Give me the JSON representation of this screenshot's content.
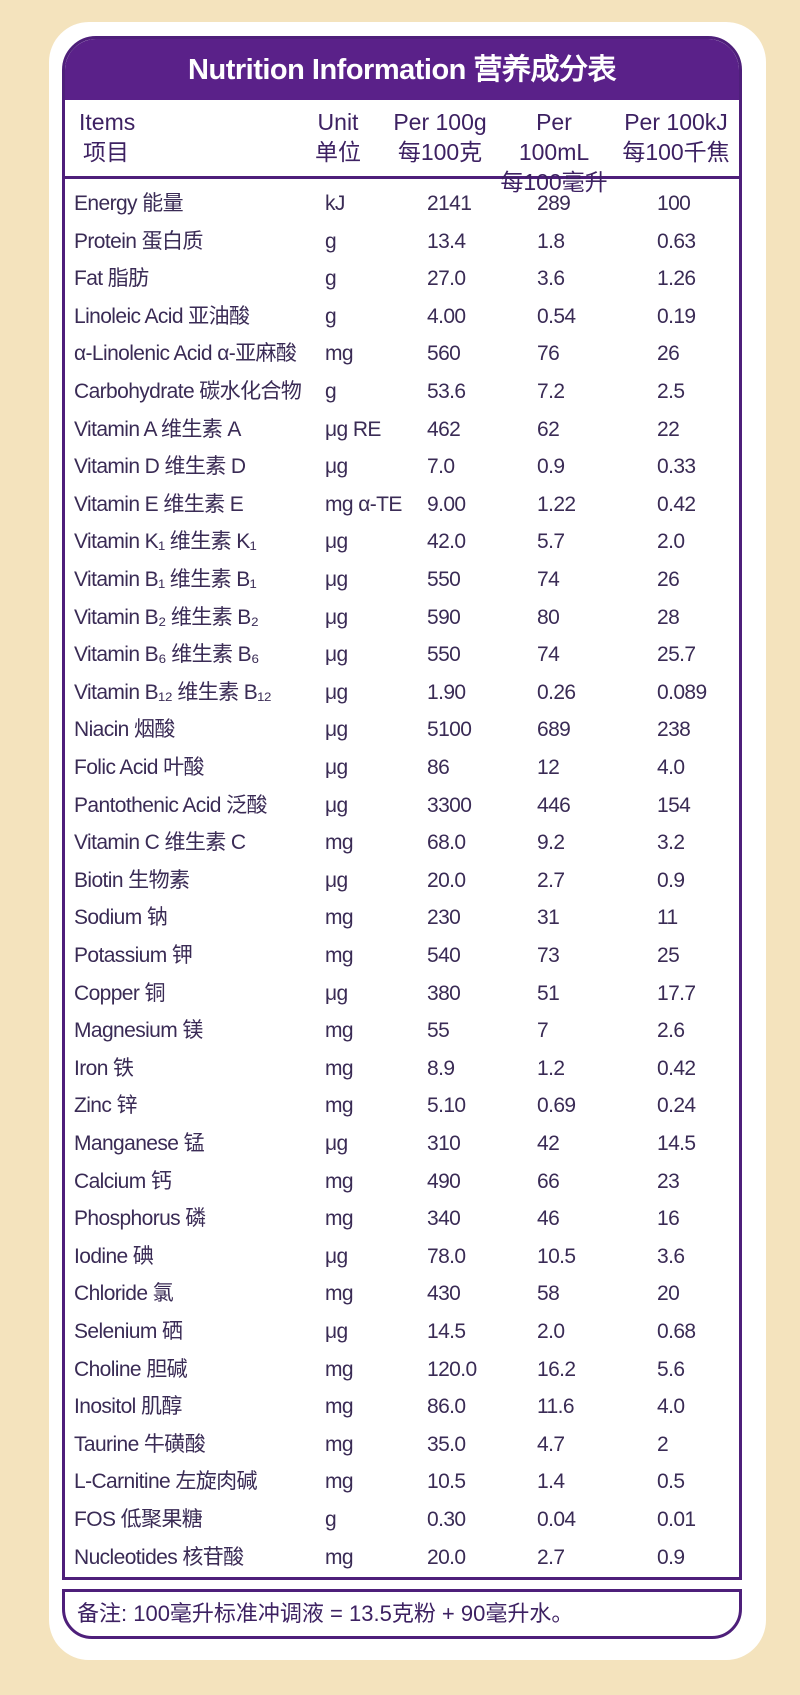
{
  "title": "Nutrition Information 营养成分表",
  "headers": {
    "items": {
      "en": "Items",
      "zh": "项目"
    },
    "unit": {
      "en": "Unit",
      "zh": "单位"
    },
    "per100g": {
      "en": "Per 100g",
      "zh": "每100克"
    },
    "per100ml": {
      "en": "Per 100mL",
      "zh": "每100毫升"
    },
    "per100kj": {
      "en": "Per 100kJ",
      "zh": "每100千焦"
    }
  },
  "rows": [
    [
      "Energy 能量",
      "kJ",
      "2141",
      "289",
      "100"
    ],
    [
      "Protein 蛋白质",
      "g",
      "13.4",
      "1.8",
      "0.63"
    ],
    [
      "Fat 脂肪",
      "g",
      "27.0",
      "3.6",
      "1.26"
    ],
    [
      "Linoleic Acid 亚油酸",
      "g",
      "4.00",
      "0.54",
      "0.19"
    ],
    [
      "α-Linolenic Acid α-亚麻酸",
      "mg",
      "560",
      "76",
      "26"
    ],
    [
      "Carbohydrate 碳水化合物",
      "g",
      "53.6",
      "7.2",
      "2.5"
    ],
    [
      "Vitamin A 维生素 A",
      "μg RE",
      "462",
      "62",
      "22"
    ],
    [
      "Vitamin D 维生素 D",
      "μg",
      "7.0",
      "0.9",
      "0.33"
    ],
    [
      "Vitamin E 维生素 E",
      "mg α-TE",
      "9.00",
      "1.22",
      "0.42"
    ],
    [
      "Vitamin K₁ 维生素 K₁",
      "μg",
      "42.0",
      "5.7",
      "2.0"
    ],
    [
      "Vitamin B₁ 维生素 B₁",
      "μg",
      "550",
      "74",
      "26"
    ],
    [
      "Vitamin B₂ 维生素 B₂",
      "μg",
      "590",
      "80",
      "28"
    ],
    [
      "Vitamin B₆ 维生素 B₆",
      "μg",
      "550",
      "74",
      "25.7"
    ],
    [
      "Vitamin B₁₂ 维生素 B₁₂",
      "μg",
      "1.90",
      "0.26",
      "0.089"
    ],
    [
      "Niacin 烟酸",
      "μg",
      "5100",
      "689",
      "238"
    ],
    [
      "Folic Acid 叶酸",
      "μg",
      "86",
      "12",
      "4.0"
    ],
    [
      "Pantothenic Acid 泛酸",
      "μg",
      "3300",
      "446",
      "154"
    ],
    [
      "Vitamin C 维生素 C",
      "mg",
      "68.0",
      "9.2",
      "3.2"
    ],
    [
      "Biotin 生物素",
      "μg",
      "20.0",
      "2.7",
      "0.9"
    ],
    [
      "Sodium 钠",
      "mg",
      "230",
      "31",
      "11"
    ],
    [
      "Potassium 钾",
      "mg",
      "540",
      "73",
      "25"
    ],
    [
      "Copper 铜",
      "μg",
      "380",
      "51",
      "17.7"
    ],
    [
      "Magnesium 镁",
      "mg",
      "55",
      "7",
      "2.6"
    ],
    [
      "Iron 铁",
      "mg",
      "8.9",
      "1.2",
      "0.42"
    ],
    [
      "Zinc 锌",
      "mg",
      "5.10",
      "0.69",
      "0.24"
    ],
    [
      "Manganese 锰",
      "μg",
      "310",
      "42",
      "14.5"
    ],
    [
      "Calcium 钙",
      "mg",
      "490",
      "66",
      "23"
    ],
    [
      "Phosphorus 磷",
      "mg",
      "340",
      "46",
      "16"
    ],
    [
      "Iodine 碘",
      "μg",
      "78.0",
      "10.5",
      "3.6"
    ],
    [
      "Chloride 氯",
      "mg",
      "430",
      "58",
      "20"
    ],
    [
      "Selenium 硒",
      "μg",
      "14.5",
      "2.0",
      "0.68"
    ],
    [
      "Choline 胆碱",
      "mg",
      "120.0",
      "16.2",
      "5.6"
    ],
    [
      "Inositol 肌醇",
      "mg",
      "86.0",
      "11.6",
      "4.0"
    ],
    [
      "Taurine 牛磺酸",
      "mg",
      "35.0",
      "4.7",
      "2"
    ],
    [
      "L-Carnitine 左旋肉碱",
      "mg",
      "10.5",
      "1.4",
      "0.5"
    ],
    [
      "FOS 低聚果糖",
      "g",
      "0.30",
      "0.04",
      "0.01"
    ],
    [
      "Nucleotides 核苷酸",
      "mg",
      "20.0",
      "2.7",
      "0.9"
    ]
  ],
  "footnote": "备注: 100毫升标准冲调液 = 13.5克粉 + 90毫升水。",
  "colors": {
    "purple": "#5a2189",
    "background": "#f4e3bd"
  }
}
